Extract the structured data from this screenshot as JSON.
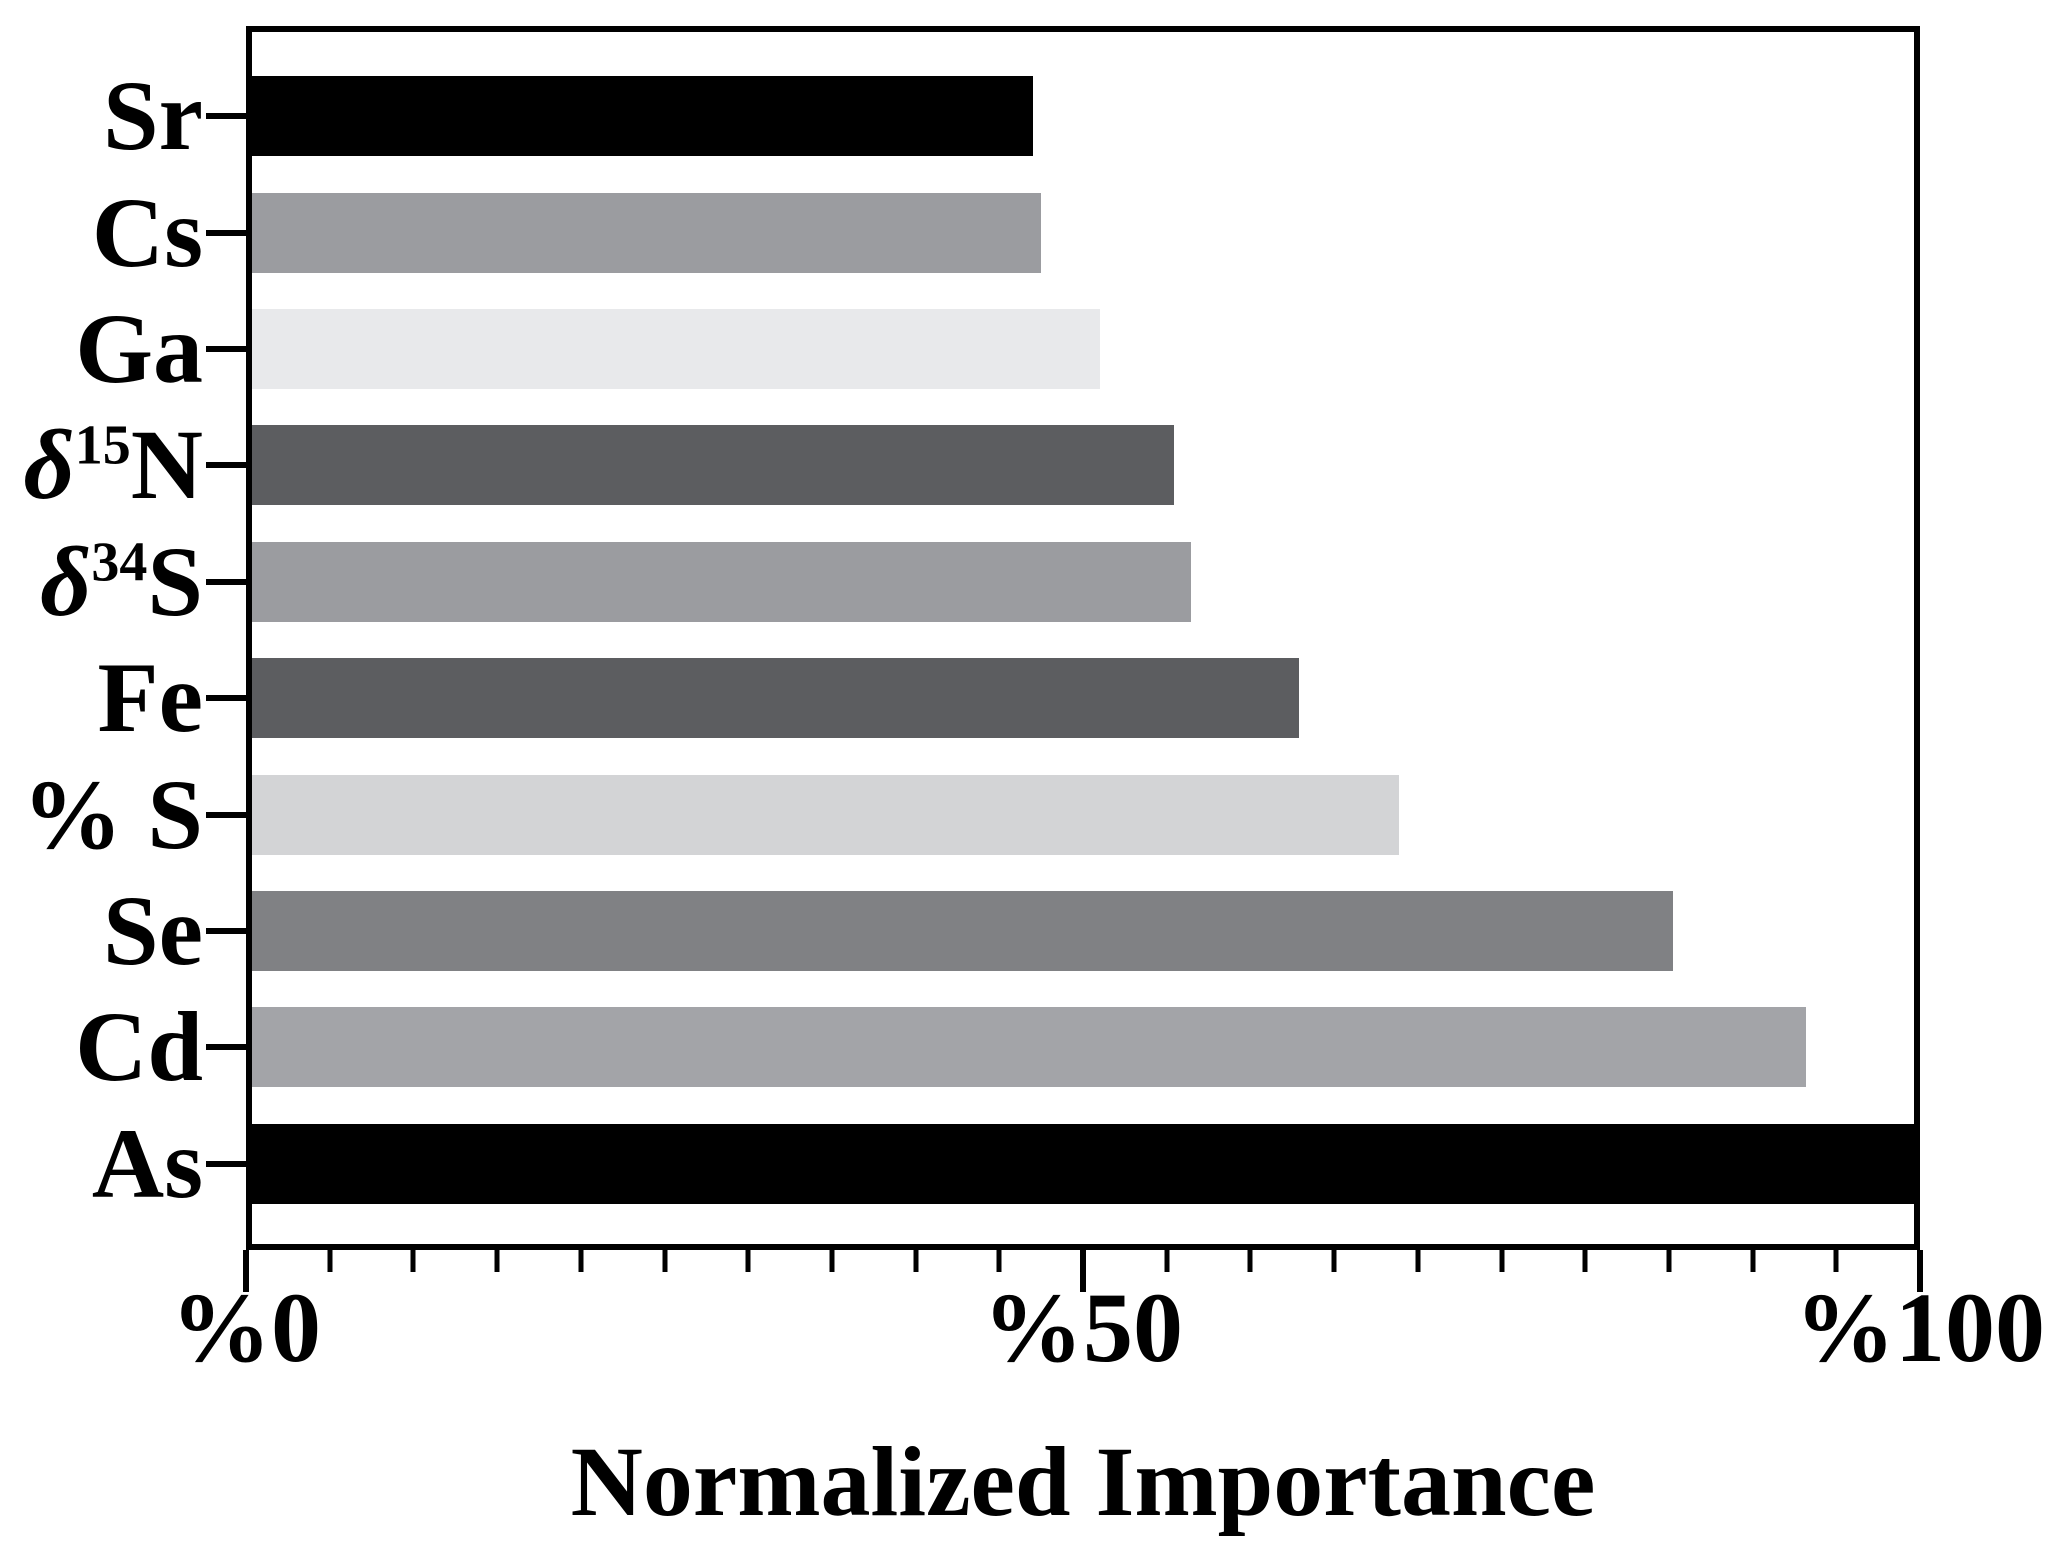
{
  "chart_data": {
    "type": "bar",
    "orientation": "horizontal",
    "title": "",
    "xlabel": "Normalized Importance",
    "ylabel": "",
    "x_axis": {
      "range": [
        0,
        100
      ],
      "minor_tick_step": 5,
      "ticks": [
        {
          "label": "%0",
          "value": 0
        },
        {
          "label": "%50",
          "value": 50
        },
        {
          "label": "%100",
          "value": 100
        }
      ]
    },
    "categories": [
      {
        "delta": "",
        "sup": "",
        "text": "Sr"
      },
      {
        "delta": "",
        "sup": "",
        "text": "Cs"
      },
      {
        "delta": "",
        "sup": "",
        "text": "Ga"
      },
      {
        "delta": "δ",
        "sup": "15",
        "text": "N"
      },
      {
        "delta": "δ",
        "sup": "34",
        "text": "S"
      },
      {
        "delta": "",
        "sup": "",
        "text": "Fe"
      },
      {
        "delta": "",
        "sup": "",
        "text": "% S"
      },
      {
        "delta": "",
        "sup": "",
        "text": "Se"
      },
      {
        "delta": "",
        "sup": "",
        "text": "Cd"
      },
      {
        "delta": "",
        "sup": "",
        "text": "As"
      }
    ],
    "values": [
      47,
      47.5,
      51,
      55.5,
      56.5,
      63,
      69,
      85.5,
      93.5,
      100
    ],
    "bar_colors": [
      "#000000",
      "#9b9ca0",
      "#e8e9eb",
      "#5c5d60",
      "#9b9ca0",
      "#5c5d60",
      "#d3d4d6",
      "#808184",
      "#a3a4a8",
      "#000000"
    ],
    "frame_color": "#000000",
    "text_color": "#000000",
    "background": "#ffffff",
    "grid": false,
    "legend": false
  }
}
